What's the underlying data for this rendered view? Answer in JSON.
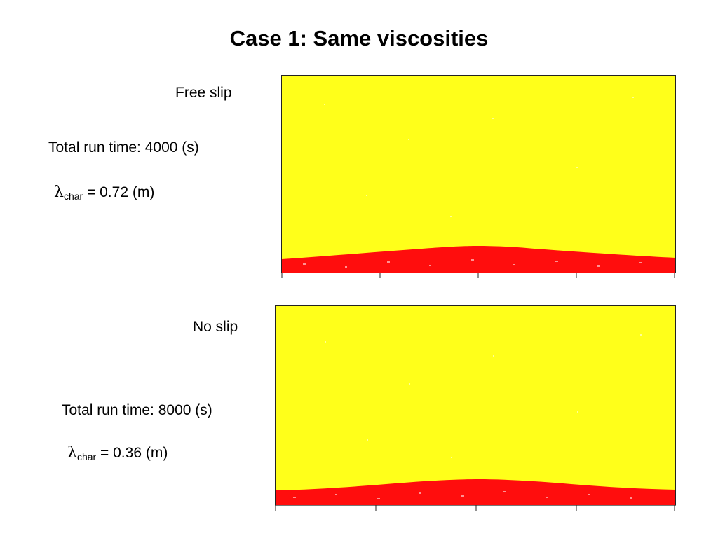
{
  "title": "Case 1: Same viscosities",
  "top_case": {
    "label": "Free slip",
    "run_time": "Total run time: 4000 (s)",
    "lambda_symbol": "λ",
    "lambda_subscript": "char",
    "lambda_value": " = 0.72 (m)"
  },
  "bottom_case": {
    "label": "No slip",
    "run_time": "Total run time: 8000 (s)",
    "lambda_symbol": "λ",
    "lambda_subscript": "char",
    "lambda_value": " = 0.36 (m)"
  },
  "colors": {
    "upper_fluid": "#ffff1a",
    "lower_fluid": "#ff0d0d",
    "border": "#222222"
  }
}
